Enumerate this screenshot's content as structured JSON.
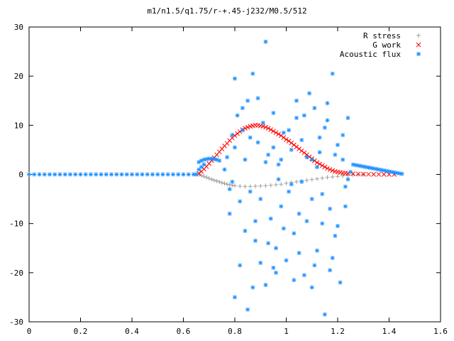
{
  "chart_data": {
    "type": "scatter",
    "title": "m1/n1.5/q1.75/r-+.45-j232/M0.5/512",
    "xlabel": "",
    "ylabel": "",
    "xlim": [
      0,
      1.6
    ],
    "ylim": [
      -30,
      30
    ],
    "x_ticks": [
      "0",
      "0.2",
      "0.4",
      "0.6",
      "0.8",
      "1",
      "1.2",
      "1.4",
      "1.6"
    ],
    "y_ticks": [
      "30",
      "20",
      "10",
      "0",
      "-10",
      "-20",
      "-30"
    ],
    "grid": false,
    "legend_position": "top-right",
    "series": [
      {
        "name": "R stress",
        "marker": "plus",
        "color": "#a0a0a0",
        "points": [
          [
            0.66,
            -0.05
          ],
          [
            0.67,
            -0.2
          ],
          [
            0.68,
            -0.4
          ],
          [
            0.69,
            -0.6
          ],
          [
            0.7,
            -0.8
          ],
          [
            0.71,
            -1.0
          ],
          [
            0.72,
            -1.2
          ],
          [
            0.73,
            -1.35
          ],
          [
            0.74,
            -1.5
          ],
          [
            0.75,
            -1.7
          ],
          [
            0.76,
            -1.85
          ],
          [
            0.77,
            -2.0
          ],
          [
            0.78,
            -2.1
          ],
          [
            0.79,
            -2.2
          ],
          [
            0.8,
            -2.3
          ],
          [
            0.82,
            -2.4
          ],
          [
            0.84,
            -2.45
          ],
          [
            0.86,
            -2.45
          ],
          [
            0.88,
            -2.4
          ],
          [
            0.9,
            -2.35
          ],
          [
            0.92,
            -2.3
          ],
          [
            0.94,
            -2.2
          ],
          [
            0.96,
            -2.1
          ],
          [
            0.98,
            -2.0
          ],
          [
            1.0,
            -1.8
          ],
          [
            1.02,
            -1.65
          ],
          [
            1.04,
            -1.5
          ],
          [
            1.06,
            -1.35
          ],
          [
            1.08,
            -1.2
          ],
          [
            1.1,
            -1.05
          ],
          [
            1.12,
            -0.9
          ],
          [
            1.14,
            -0.75
          ],
          [
            1.16,
            -0.6
          ],
          [
            1.18,
            -0.5
          ],
          [
            1.2,
            -0.4
          ],
          [
            1.22,
            -0.3
          ],
          [
            1.24,
            -0.2
          ],
          [
            1.26,
            -0.12
          ],
          [
            1.28,
            -0.05
          ],
          [
            1.3,
            0.0
          ]
        ]
      },
      {
        "name": "G work",
        "marker": "cross",
        "color": "#ff0000",
        "points": [
          [
            0.66,
            0.2
          ],
          [
            0.67,
            0.6
          ],
          [
            0.68,
            1.1
          ],
          [
            0.69,
            1.6
          ],
          [
            0.7,
            2.2
          ],
          [
            0.71,
            2.8
          ],
          [
            0.72,
            3.4
          ],
          [
            0.73,
            4.0
          ],
          [
            0.74,
            4.6
          ],
          [
            0.75,
            5.2
          ],
          [
            0.76,
            5.8
          ],
          [
            0.77,
            6.3
          ],
          [
            0.78,
            6.9
          ],
          [
            0.79,
            7.4
          ],
          [
            0.8,
            7.9
          ],
          [
            0.81,
            8.3
          ],
          [
            0.82,
            8.7
          ],
          [
            0.83,
            9.1
          ],
          [
            0.84,
            9.4
          ],
          [
            0.85,
            9.6
          ],
          [
            0.86,
            9.8
          ],
          [
            0.87,
            9.9
          ],
          [
            0.88,
            10.0
          ],
          [
            0.89,
            10.0
          ],
          [
            0.9,
            9.9
          ],
          [
            0.91,
            9.8
          ],
          [
            0.92,
            9.6
          ],
          [
            0.93,
            9.4
          ],
          [
            0.94,
            9.1
          ],
          [
            0.95,
            8.8
          ],
          [
            0.96,
            8.5
          ],
          [
            0.97,
            8.2
          ],
          [
            0.98,
            7.9
          ],
          [
            0.99,
            7.5
          ],
          [
            1.0,
            7.1
          ],
          [
            1.01,
            6.8
          ],
          [
            1.02,
            6.4
          ],
          [
            1.03,
            6.0
          ],
          [
            1.04,
            5.6
          ],
          [
            1.05,
            5.2
          ],
          [
            1.06,
            4.8
          ],
          [
            1.07,
            4.4
          ],
          [
            1.08,
            4.0
          ],
          [
            1.09,
            3.6
          ],
          [
            1.1,
            3.2
          ],
          [
            1.11,
            2.8
          ],
          [
            1.12,
            2.4
          ],
          [
            1.13,
            2.1
          ],
          [
            1.14,
            1.8
          ],
          [
            1.15,
            1.5
          ],
          [
            1.16,
            1.2
          ],
          [
            1.17,
            1.0
          ],
          [
            1.18,
            0.8
          ],
          [
            1.19,
            0.6
          ],
          [
            1.2,
            0.5
          ],
          [
            1.21,
            0.4
          ],
          [
            1.22,
            0.3
          ],
          [
            1.23,
            0.25
          ],
          [
            1.24,
            0.2
          ],
          [
            1.26,
            0.15
          ],
          [
            1.28,
            0.1
          ],
          [
            1.3,
            0.05
          ],
          [
            1.32,
            0.03
          ],
          [
            1.34,
            0.02
          ],
          [
            1.36,
            0.01
          ],
          [
            1.38,
            0.0
          ],
          [
            1.4,
            0.0
          ],
          [
            1.42,
            0.0
          ]
        ]
      },
      {
        "name": "Acoustic flux",
        "marker": "star",
        "color": "#1e90ff",
        "points": [
          [
            0.0,
            0.0
          ],
          [
            0.02,
            0.0
          ],
          [
            0.04,
            0.0
          ],
          [
            0.06,
            0.0
          ],
          [
            0.08,
            0.0
          ],
          [
            0.1,
            0.0
          ],
          [
            0.12,
            0.0
          ],
          [
            0.14,
            0.0
          ],
          [
            0.16,
            0.0
          ],
          [
            0.18,
            0.0
          ],
          [
            0.2,
            0.0
          ],
          [
            0.22,
            0.0
          ],
          [
            0.24,
            0.0
          ],
          [
            0.26,
            0.0
          ],
          [
            0.28,
            0.0
          ],
          [
            0.3,
            0.0
          ],
          [
            0.32,
            0.0
          ],
          [
            0.34,
            0.0
          ],
          [
            0.36,
            0.0
          ],
          [
            0.38,
            0.0
          ],
          [
            0.4,
            0.0
          ],
          [
            0.42,
            0.0
          ],
          [
            0.44,
            0.0
          ],
          [
            0.46,
            0.0
          ],
          [
            0.48,
            0.0
          ],
          [
            0.5,
            0.0
          ],
          [
            0.52,
            0.0
          ],
          [
            0.54,
            0.0
          ],
          [
            0.56,
            0.0
          ],
          [
            0.58,
            0.0
          ],
          [
            0.6,
            0.0
          ],
          [
            0.62,
            0.0
          ],
          [
            0.64,
            0.0
          ],
          [
            0.65,
            0.0
          ],
          [
            0.66,
            2.5
          ],
          [
            0.67,
            2.8
          ],
          [
            0.68,
            3.0
          ],
          [
            0.69,
            3.1
          ],
          [
            0.7,
            3.2
          ],
          [
            0.71,
            3.2
          ],
          [
            0.72,
            3.1
          ],
          [
            0.73,
            3.0
          ],
          [
            0.74,
            2.8
          ],
          [
            0.66,
            1.0
          ],
          [
            0.67,
            1.5
          ],
          [
            0.68,
            2.0
          ],
          [
            1.26,
            2.0
          ],
          [
            1.27,
            1.9
          ],
          [
            1.28,
            1.8
          ],
          [
            1.29,
            1.7
          ],
          [
            1.3,
            1.6
          ],
          [
            1.31,
            1.5
          ],
          [
            1.32,
            1.4
          ],
          [
            1.33,
            1.3
          ],
          [
            1.34,
            1.2
          ],
          [
            1.35,
            1.1
          ],
          [
            1.36,
            1.0
          ],
          [
            1.37,
            0.9
          ],
          [
            1.38,
            0.8
          ],
          [
            1.39,
            0.7
          ],
          [
            1.4,
            0.6
          ],
          [
            1.41,
            0.5
          ],
          [
            1.42,
            0.4
          ],
          [
            1.43,
            0.3
          ],
          [
            1.44,
            0.2
          ],
          [
            1.45,
            0.1
          ],
          [
            0.76,
            1.0
          ],
          [
            0.77,
            3.5
          ],
          [
            0.78,
            -3.0
          ],
          [
            0.79,
            -1.5
          ],
          [
            0.8,
            19.5
          ],
          [
            0.8,
            5.5
          ],
          [
            0.81,
            12.0
          ],
          [
            0.82,
            -5.5
          ],
          [
            0.83,
            9.0
          ],
          [
            0.84,
            -11.5
          ],
          [
            0.85,
            15.0
          ],
          [
            0.86,
            -3.5
          ],
          [
            0.87,
            20.5
          ],
          [
            0.88,
            -13.5
          ],
          [
            0.89,
            6.5
          ],
          [
            0.9,
            -18.0
          ],
          [
            0.91,
            10.5
          ],
          [
            0.92,
            27.0
          ],
          [
            0.92,
            -22.5
          ],
          [
            0.93,
            4.0
          ],
          [
            0.94,
            -9.0
          ],
          [
            0.95,
            12.5
          ],
          [
            0.96,
            -15.0
          ],
          [
            0.97,
            2.0
          ],
          [
            0.98,
            -6.5
          ],
          [
            0.99,
            8.5
          ],
          [
            1.0,
            -17.5
          ],
          [
            1.01,
            -3.5
          ],
          [
            1.02,
            5.0
          ],
          [
            1.03,
            -12.0
          ],
          [
            1.04,
            11.5
          ],
          [
            1.05,
            -8.0
          ],
          [
            1.06,
            7.0
          ],
          [
            1.07,
            -20.5
          ],
          [
            1.08,
            3.5
          ],
          [
            1.09,
            16.5
          ],
          [
            1.1,
            -5.0
          ],
          [
            1.11,
            13.5
          ],
          [
            1.12,
            -15.5
          ],
          [
            1.13,
            4.5
          ],
          [
            1.14,
            -10.0
          ],
          [
            1.15,
            9.5
          ],
          [
            1.15,
            -28.5
          ],
          [
            1.16,
            14.5
          ],
          [
            1.17,
            -7.0
          ],
          [
            1.18,
            20.5
          ],
          [
            1.19,
            -12.5
          ],
          [
            1.2,
            6.0
          ],
          [
            1.21,
            -22.0
          ],
          [
            1.22,
            3.0
          ],
          [
            1.23,
            -6.5
          ],
          [
            1.24,
            11.5
          ],
          [
            1.25,
            0.5
          ],
          [
            0.78,
            -8.0
          ],
          [
            0.82,
            -18.5
          ],
          [
            0.85,
            -27.5
          ],
          [
            0.88,
            -9.5
          ],
          [
            0.9,
            -5.0
          ],
          [
            0.93,
            -14.0
          ],
          [
            0.96,
            -20.0
          ],
          [
            0.99,
            -11.0
          ],
          [
            1.02,
            -2.0
          ],
          [
            1.05,
            -16.0
          ],
          [
            1.08,
            -9.5
          ],
          [
            1.11,
            -18.5
          ],
          [
            1.14,
            -4.0
          ],
          [
            1.17,
            -19.5
          ],
          [
            1.2,
            -10.5
          ],
          [
            1.23,
            -2.5
          ],
          [
            0.79,
            8.0
          ],
          [
            0.83,
            13.5
          ],
          [
            0.86,
            7.5
          ],
          [
            0.89,
            15.5
          ],
          [
            0.92,
            2.5
          ],
          [
            0.95,
            5.5
          ],
          [
            0.98,
            3.0
          ],
          [
            1.01,
            9.0
          ],
          [
            1.04,
            15.0
          ],
          [
            1.07,
            12.0
          ],
          [
            1.1,
            3.0
          ],
          [
            1.13,
            7.5
          ],
          [
            1.16,
            11.0
          ],
          [
            1.19,
            4.0
          ],
          [
            1.22,
            8.0
          ],
          [
            0.8,
            -25.0
          ],
          [
            0.87,
            -23.0
          ],
          [
            0.95,
            -19.0
          ],
          [
            1.03,
            -21.5
          ],
          [
            1.1,
            -23.0
          ],
          [
            1.18,
            -17.0
          ],
          [
            0.84,
            3.0
          ],
          [
            0.97,
            -1.0
          ],
          [
            1.06,
            -1.5
          ],
          [
            1.12,
            1.5
          ],
          [
            1.24,
            -1.0
          ]
        ]
      }
    ]
  }
}
